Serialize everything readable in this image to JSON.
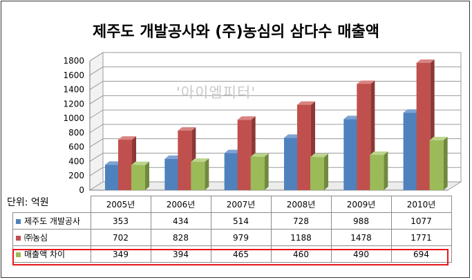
{
  "chart_title": "제주도 개발공사와 (주)농심의 삼다수 매출액",
  "watermark": "'아이엠피터'",
  "unit_label": "단위: 억원",
  "colors": {
    "series_front": [
      "#4f81bd",
      "#c0504d",
      "#9bbb59"
    ],
    "series_side": [
      "#385d8a",
      "#8c3836",
      "#71893f"
    ],
    "series_top": [
      "#7ea3d3",
      "#d98482",
      "#bbd58a"
    ],
    "highlight_border": "#e8141b"
  },
  "chart_data": {
    "type": "bar",
    "title": "제주도 개발공사와 (주)농심의 삼다수 매출액",
    "ylabel": "단위: 억원",
    "ylim": [
      0,
      1800
    ],
    "yticks": [
      "0",
      "200",
      "400",
      "600",
      "800",
      "1000",
      "1200",
      "1400",
      "1600",
      "1800"
    ],
    "categories": [
      "2005년",
      "2006년",
      "2007년",
      "2008년",
      "2009년",
      "2010년"
    ],
    "series": [
      {
        "name": "제주도 개발공사",
        "values": [
          353,
          434,
          514,
          728,
          988,
          1077
        ]
      },
      {
        "name": "㈜농심",
        "values": [
          702,
          828,
          979,
          1188,
          1478,
          1771
        ]
      },
      {
        "name": "매출액 차이",
        "values": [
          349,
          394,
          465,
          460,
          490,
          694
        ]
      }
    ],
    "grid": true,
    "legend": "table-bottom"
  }
}
